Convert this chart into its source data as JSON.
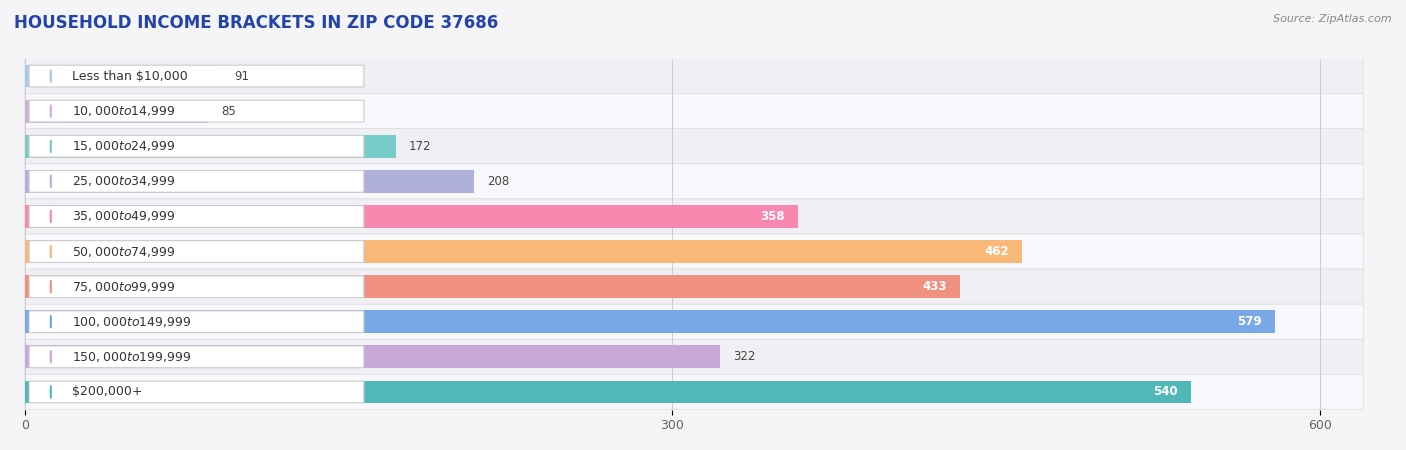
{
  "title": "HOUSEHOLD INCOME BRACKETS IN ZIP CODE 37686",
  "source": "Source: ZipAtlas.com",
  "categories": [
    "Less than $10,000",
    "$10,000 to $14,999",
    "$15,000 to $24,999",
    "$25,000 to $34,999",
    "$35,000 to $49,999",
    "$50,000 to $74,999",
    "$75,000 to $99,999",
    "$100,000 to $149,999",
    "$150,000 to $199,999",
    "$200,000+"
  ],
  "values": [
    91,
    85,
    172,
    208,
    358,
    462,
    433,
    579,
    322,
    540
  ],
  "bar_colors": [
    "#a8c8e8",
    "#ceb0d8",
    "#78ccc8",
    "#b0b0dc",
    "#f888b0",
    "#f8b878",
    "#f09080",
    "#78a8e8",
    "#c8a8d8",
    "#50b8b8"
  ],
  "row_bg_colors": [
    "#f0f0f4",
    "#f8f8fc"
  ],
  "xlim_min": 0,
  "xlim_max": 620,
  "xticks": [
    0,
    300,
    600
  ],
  "bg_color": "#f5f5f8",
  "title_color": "#2244aa",
  "title_fontsize": 12,
  "source_fontsize": 8,
  "label_fontsize": 9,
  "value_fontsize": 8.5,
  "bar_height": 0.65,
  "value_inside_threshold": 350
}
